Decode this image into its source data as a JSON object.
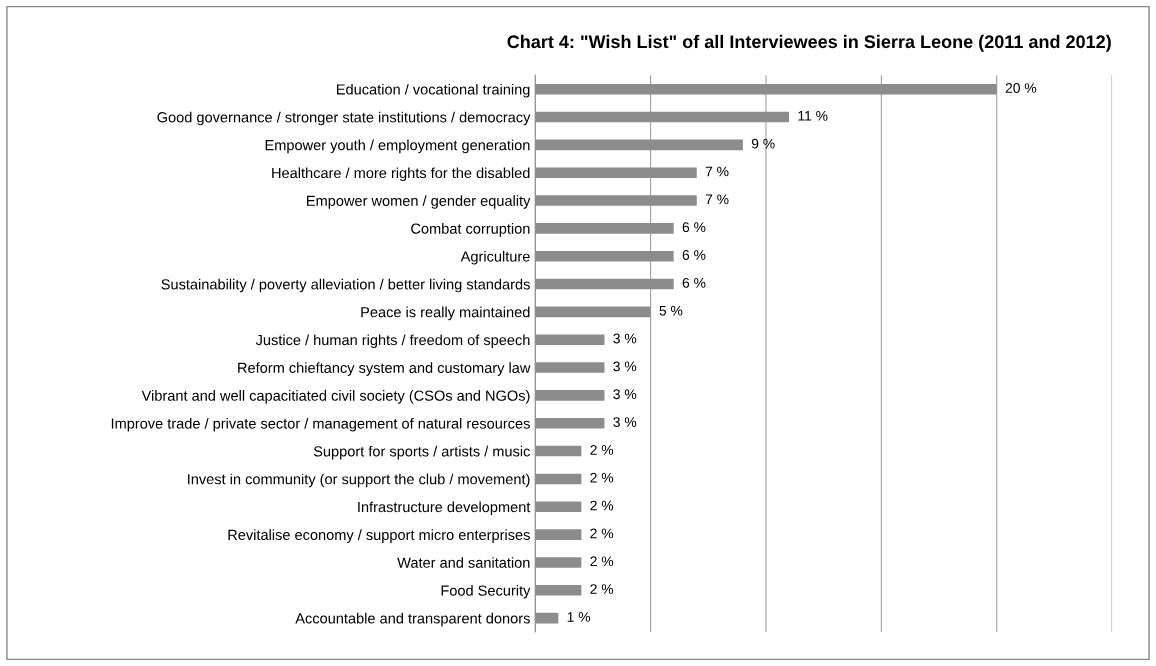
{
  "chart_data": {
    "type": "bar",
    "orientation": "horizontal",
    "title": "Chart 4: \"Wish List\" of all Interviewees in Sierra Leone (2011 and 2012)",
    "categories": [
      "Education / vocational training",
      "Good governance / stronger state institutions / democracy",
      "Empower youth / employment generation",
      "Healthcare / more rights for the disabled",
      "Empower women / gender equality",
      "Combat corruption",
      "Agriculture",
      "Sustainability / poverty alleviation / better living standards",
      "Peace is really maintained",
      "Justice / human rights / freedom of speech",
      "Reform chieftancy system and customary law",
      "Vibrant and well capacitiated civil society (CSOs and NGOs)",
      "Improve trade / private sector / management of natural resources",
      "Support for sports / artists / music",
      "Invest in community (or support the club / movement)",
      "Infrastructure development",
      "Revitalise economy / support micro enterprises",
      "Water and sanitation",
      "Food Security",
      "Accountable and transparent donors"
    ],
    "values": [
      20,
      11,
      9,
      7,
      7,
      6,
      6,
      6,
      5,
      3,
      3,
      3,
      3,
      2,
      2,
      2,
      2,
      2,
      2,
      1
    ],
    "value_labels": [
      "20 %",
      "11 %",
      "9 %",
      "7 %",
      "7 %",
      "6 %",
      "6 %",
      "6 %",
      "5 %",
      "3 %",
      "3 %",
      "3 %",
      "3 %",
      "2 %",
      "2 %",
      "2 %",
      "2 %",
      "2 %",
      "2 %",
      "1 %"
    ],
    "color": "#8c8c8c",
    "xlim": [
      0,
      25
    ],
    "xticks": [
      {
        "value": 0,
        "label": null
      },
      {
        "value": 5,
        "label": null
      },
      {
        "value": 10,
        "label": null
      },
      {
        "value": 15,
        "label": null
      },
      {
        "value": 20,
        "label": null
      },
      {
        "value": 25,
        "label": null
      }
    ],
    "grid": "x",
    "tick_labels": "y"
  }
}
